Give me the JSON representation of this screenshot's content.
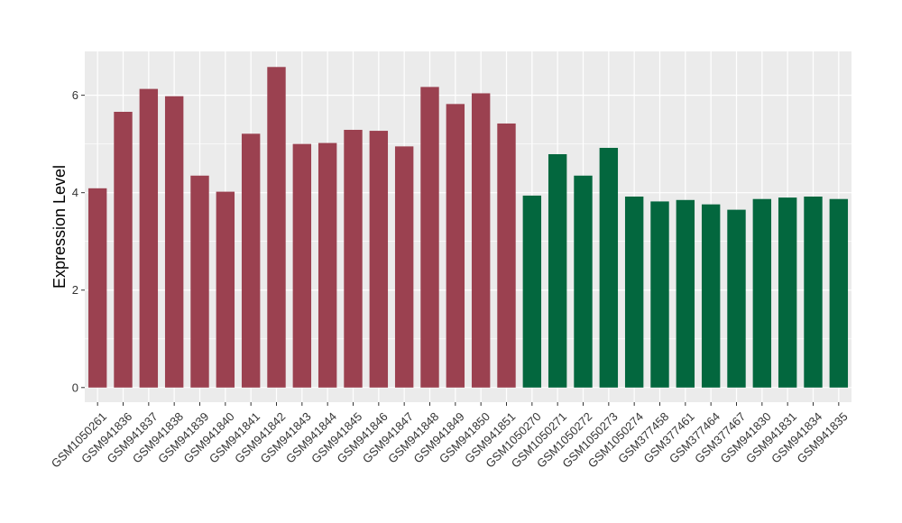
{
  "chart_data": {
    "type": "bar",
    "title": "",
    "xlabel": "",
    "ylabel": "Expression Level",
    "ylim": [
      -0.3,
      6.9
    ],
    "yticks": [
      0,
      2,
      4,
      6
    ],
    "grid": true,
    "legend": "none",
    "categories": [
      "GSM1050261",
      "GSM941836",
      "GSM941837",
      "GSM941838",
      "GSM941839",
      "GSM941840",
      "GSM941841",
      "GSM941842",
      "GSM941843",
      "GSM941844",
      "GSM941845",
      "GSM941846",
      "GSM941847",
      "GSM941848",
      "GSM941849",
      "GSM941850",
      "GSM941851",
      "GSM1050270",
      "GSM1050271",
      "GSM1050272",
      "GSM1050273",
      "GSM1050274",
      "GSM377458",
      "GSM377461",
      "GSM377464",
      "GSM377467",
      "GSM941830",
      "GSM941831",
      "GSM941834",
      "GSM941835"
    ],
    "values": [
      4.09,
      5.66,
      6.13,
      5.98,
      4.35,
      4.02,
      5.21,
      6.58,
      5.0,
      5.02,
      5.29,
      5.27,
      4.95,
      6.17,
      5.82,
      6.04,
      5.42,
      3.94,
      4.79,
      4.35,
      4.92,
      3.92,
      3.82,
      3.85,
      3.76,
      3.65,
      3.87,
      3.9,
      3.92,
      3.87
    ],
    "groups": [
      {
        "color": "#9b4150",
        "start": 0,
        "count": 17
      },
      {
        "color": "#03673e",
        "start": 17,
        "count": 13
      }
    ],
    "colors": {
      "panel_background": "#ebebeb",
      "gridline": "#ffffff"
    }
  }
}
